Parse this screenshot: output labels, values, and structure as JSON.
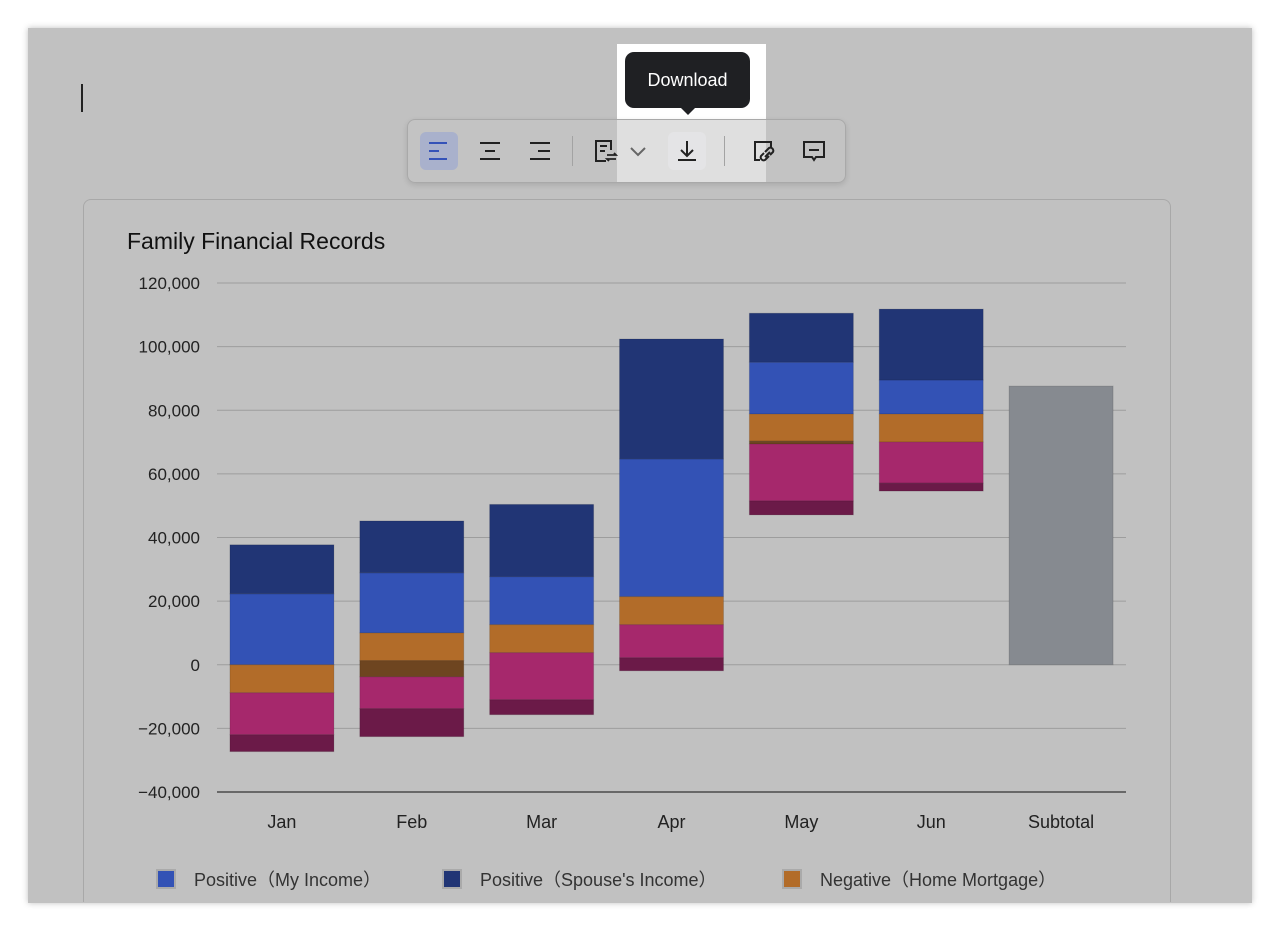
{
  "toolbar": {
    "buttons": [
      {
        "name": "align-left",
        "icon": "align-left-icon",
        "active": true
      },
      {
        "name": "align-center",
        "icon": "align-center-icon"
      },
      {
        "name": "align-right",
        "icon": "align-right-icon"
      },
      {
        "name": "text-wrap",
        "icon": "text-wrap-icon"
      },
      {
        "name": "more",
        "icon": "chevron-down-icon"
      },
      {
        "name": "download",
        "icon": "download-icon"
      },
      {
        "name": "copy-link",
        "icon": "link-icon"
      },
      {
        "name": "comment",
        "icon": "comment-icon"
      }
    ],
    "tooltip": "Download",
    "active_color": "#3452b8"
  },
  "chart_data": {
    "type": "waterfall-stacked-bar",
    "title": "Family Financial Records",
    "categories": [
      "Jan",
      "Feb",
      "Mar",
      "Apr",
      "May",
      "Jun",
      "Subtotal"
    ],
    "ylim": [
      -40000,
      120000
    ],
    "yticks": [
      120000,
      100000,
      80000,
      60000,
      40000,
      20000,
      0,
      -20000,
      -40000
    ],
    "ytick_labels": [
      "120,000",
      "100,000",
      "80,000",
      "60,000",
      "40,000",
      "20,000",
      "0",
      "−20,000",
      "−40,000"
    ],
    "grid": true,
    "legend_position": "bottom",
    "series": [
      {
        "key": "my",
        "name": "Positive（My Income）",
        "color": "#3352b5"
      },
      {
        "key": "spouse",
        "name": "Positive（Spouse's Income）",
        "color": "#213575"
      },
      {
        "key": "mortgage",
        "name": "Negative（Home Mortgage）",
        "color": "#b26c29"
      },
      {
        "key": "neg2",
        "color": "#a6286c"
      },
      {
        "key": "neg3",
        "color": "#6b1a48"
      },
      {
        "key": "overlap",
        "color": "#6e4520"
      },
      {
        "key": "subtotal",
        "color": "#868a90"
      }
    ],
    "segments": [
      [
        {
          "s": "my",
          "from": 0,
          "to": 22300
        },
        {
          "s": "spouse",
          "from": 22300,
          "to": 37700
        },
        {
          "s": "mortgage",
          "from": 0,
          "to": -8800
        },
        {
          "s": "neg2",
          "from": -8800,
          "to": -22000
        },
        {
          "s": "neg3",
          "from": -22000,
          "to": -27300
        }
      ],
      [
        {
          "s": "my",
          "from": 10000,
          "to": 28900
        },
        {
          "s": "spouse",
          "from": 28900,
          "to": 45200
        },
        {
          "s": "mortgage",
          "from": 10000,
          "to": 1300
        },
        {
          "s": "overlap",
          "from": 1300,
          "to": -3800
        },
        {
          "s": "neg2",
          "from": -3800,
          "to": -13800
        },
        {
          "s": "neg3",
          "from": -13800,
          "to": -22600
        }
      ],
      [
        {
          "s": "my",
          "from": 12600,
          "to": 27700
        },
        {
          "s": "spouse",
          "from": 27700,
          "to": 50400
        },
        {
          "s": "mortgage",
          "from": 12600,
          "to": 3800
        },
        {
          "s": "neg2",
          "from": 3800,
          "to": -11000
        },
        {
          "s": "neg3",
          "from": -11000,
          "to": -15700
        }
      ],
      [
        {
          "s": "my",
          "from": 21400,
          "to": 64700
        },
        {
          "s": "spouse",
          "from": 64700,
          "to": 102400
        },
        {
          "s": "mortgage",
          "from": 21400,
          "to": 12600
        },
        {
          "s": "neg2",
          "from": 12600,
          "to": 2200
        },
        {
          "s": "neg3",
          "from": 2200,
          "to": -1900
        }
      ],
      [
        {
          "s": "my",
          "from": 78800,
          "to": 95100
        },
        {
          "s": "spouse",
          "from": 95100,
          "to": 110500
        },
        {
          "s": "mortgage",
          "from": 78800,
          "to": 70300
        },
        {
          "s": "overlap",
          "from": 70300,
          "to": 69400
        },
        {
          "s": "neg2",
          "from": 69400,
          "to": 51500
        },
        {
          "s": "neg3",
          "from": 51500,
          "to": 47100
        }
      ],
      [
        {
          "s": "my",
          "from": 78800,
          "to": 89500
        },
        {
          "s": "spouse",
          "from": 89500,
          "to": 111800
        },
        {
          "s": "mortgage",
          "from": 78800,
          "to": 70000
        },
        {
          "s": "neg2",
          "from": 70000,
          "to": 57100
        },
        {
          "s": "neg3",
          "from": 57100,
          "to": 54600
        }
      ],
      [
        {
          "s": "subtotal",
          "from": 0,
          "to": 87600
        }
      ]
    ]
  }
}
